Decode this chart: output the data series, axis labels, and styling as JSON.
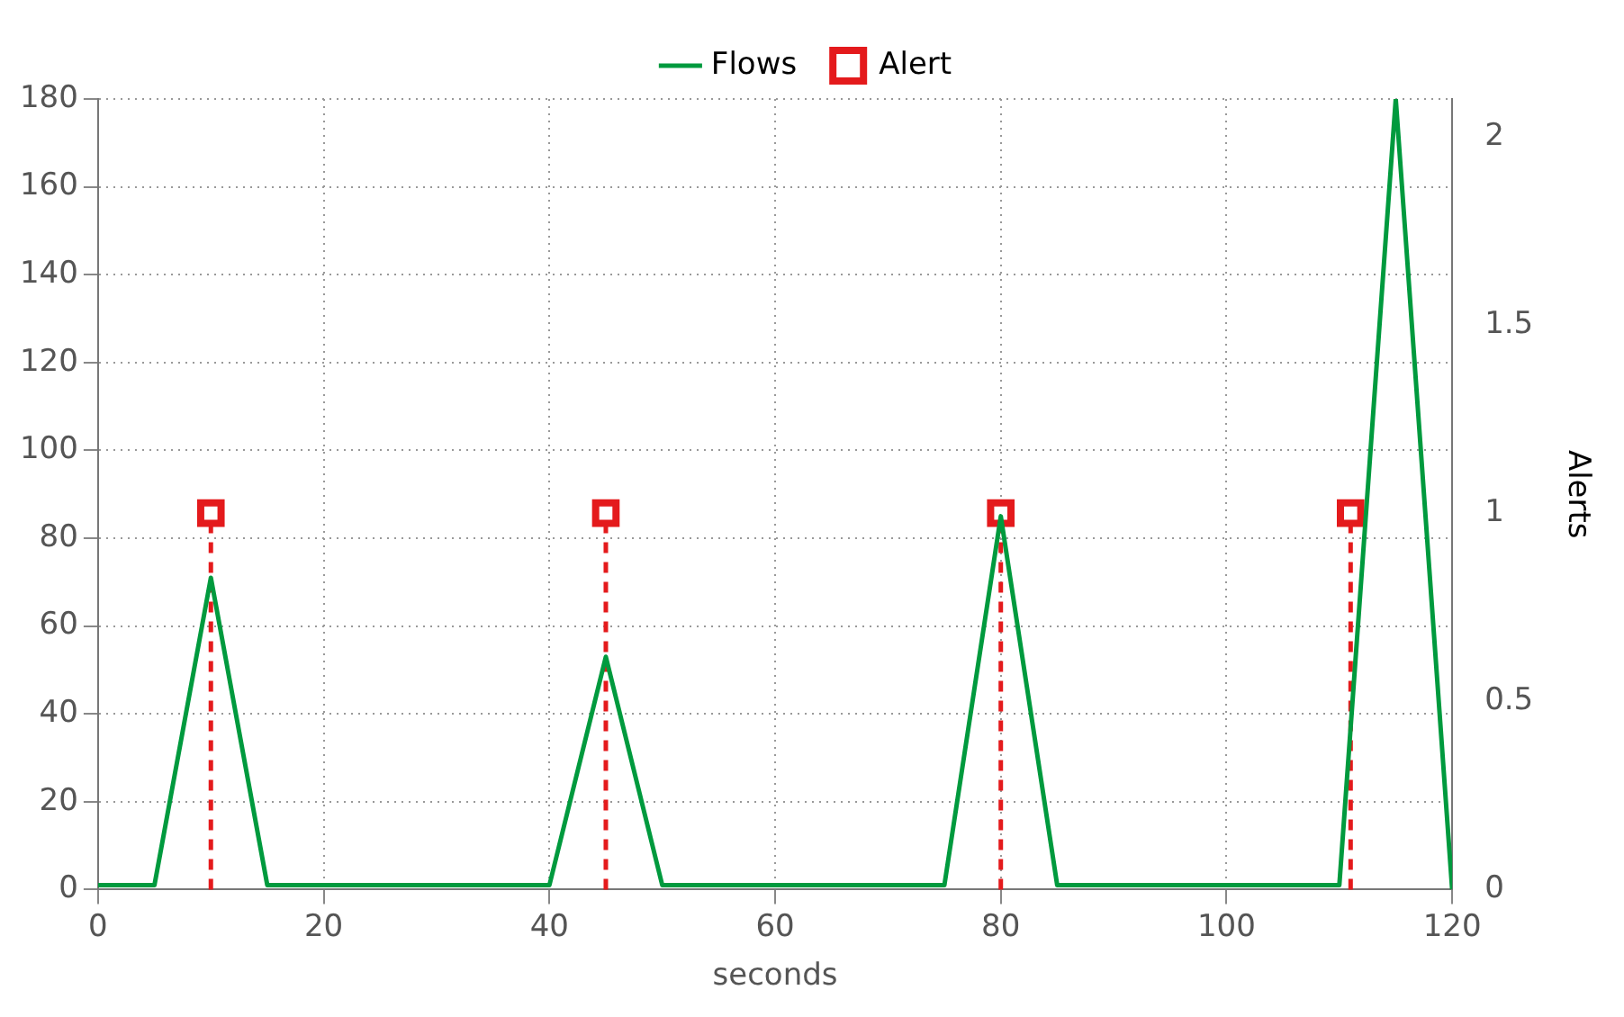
{
  "chart_data": {
    "type": "line",
    "xlabel": "seconds",
    "y2label": "Alerts",
    "xlim": [
      0,
      120
    ],
    "xticks": [
      0,
      20,
      40,
      60,
      80,
      100,
      120
    ],
    "ylim": [
      0,
      180
    ],
    "yticks": [
      0,
      20,
      40,
      60,
      80,
      100,
      120,
      140,
      160,
      180
    ],
    "y2lim": [
      0,
      2.1
    ],
    "y2ticks": [
      0,
      0.5,
      1,
      1.5,
      2
    ],
    "grid": true,
    "legend": "top",
    "series": [
      {
        "name": "Alert",
        "type": "lollipop",
        "axis": "y2",
        "color": "#e41a1c",
        "marker": "square",
        "line_style": "dashed",
        "x": [
          10,
          45,
          80,
          111
        ],
        "values": [
          1,
          1,
          1,
          1
        ]
      },
      {
        "name": "Flows",
        "color": "#009a3e",
        "marker": "none",
        "line_style": "solid",
        "x": [
          0,
          5,
          10,
          15,
          40,
          45,
          50,
          75,
          80,
          85,
          110,
          115,
          120
        ],
        "values": [
          1,
          1,
          71,
          1,
          1,
          53,
          1,
          1,
          85,
          1,
          1,
          180,
          0
        ]
      }
    ]
  }
}
